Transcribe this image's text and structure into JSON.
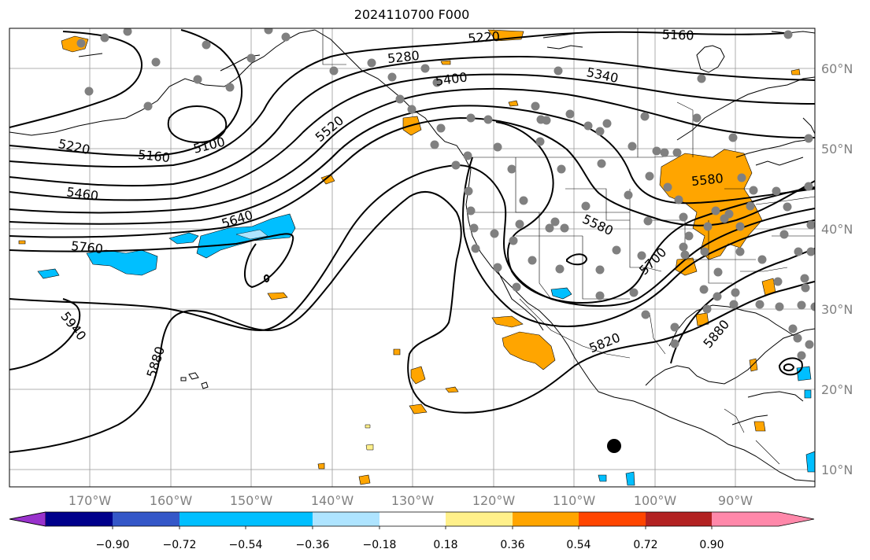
{
  "title": "2024110700 F000",
  "map": {
    "lat_labels": [
      "60°N",
      "50°N",
      "40°N",
      "30°N",
      "20°N",
      "10°N"
    ],
    "lon_labels": [
      "170°W",
      "160°W",
      "150°W",
      "140°W",
      "130°W",
      "120°W",
      "110°W",
      "100°W",
      "90°W"
    ],
    "contour_labels": [
      "5220",
      "5160",
      "5280",
      "5400",
      "5340",
      "5220",
      "5160",
      "5100",
      "5520",
      "5460",
      "5640",
      "5580",
      "5580",
      "5760",
      "5700",
      "5940",
      "5880",
      "5820",
      "5880"
    ],
    "fill_colors": {
      "orange": "#ffa500",
      "yellow": "#fff08a",
      "cyan": "#00bfff",
      "lightblue": "#aee4ff",
      "gray_dot": "#808080"
    }
  },
  "colorbar": {
    "ticks": [
      "−0.90",
      "−0.72",
      "−0.54",
      "−0.36",
      "−0.18",
      "0.18",
      "0.36",
      "0.54",
      "0.72",
      "0.90"
    ],
    "colors": [
      "#9932cc",
      "#00008b",
      "#3457c8",
      "#00bfff",
      "#aee4ff",
      "#ffffff",
      "#fff08a",
      "#ffa500",
      "#ff4500",
      "#b22222",
      "#ff88aa"
    ]
  }
}
